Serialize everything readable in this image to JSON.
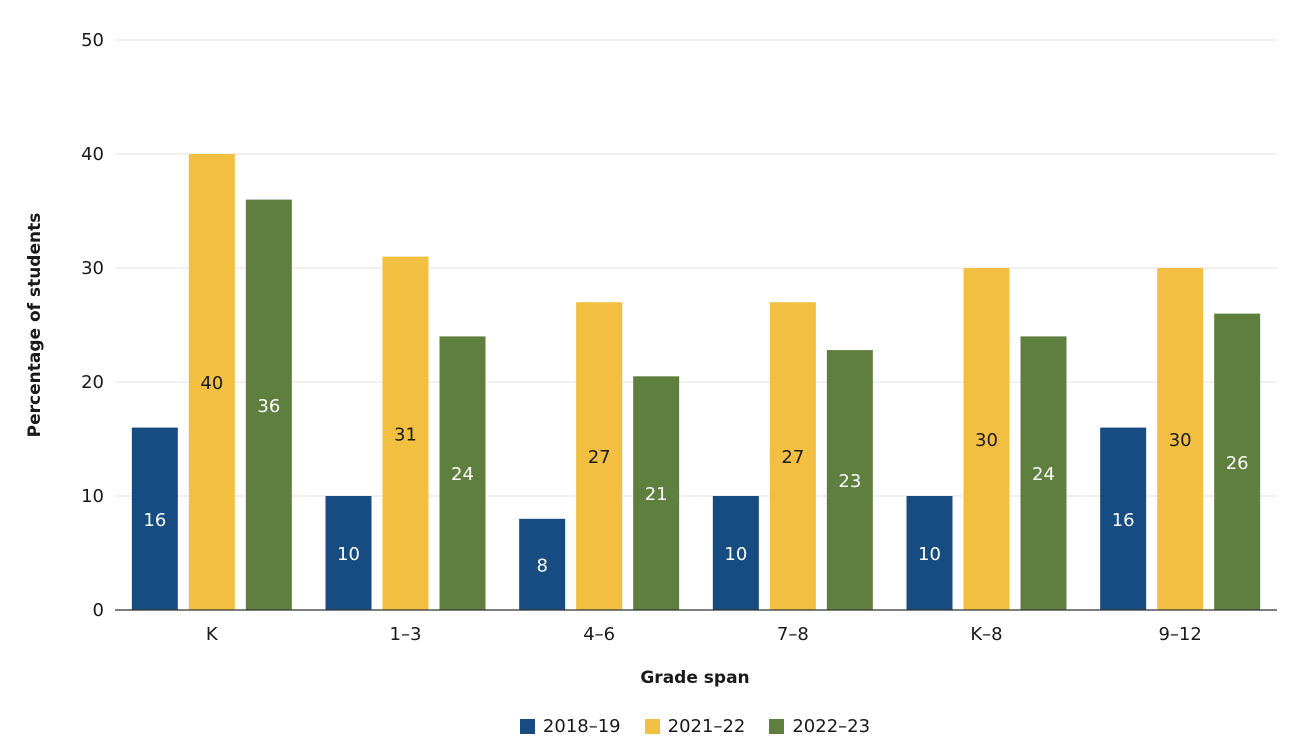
{
  "chart_data": {
    "type": "bar",
    "title": "",
    "xlabel": "Grade span",
    "ylabel": "Percentage of students",
    "ylim": [
      0,
      50
    ],
    "yticks": [
      0,
      10,
      20,
      30,
      40,
      50
    ],
    "grid": true,
    "legend_position": "bottom",
    "categories": [
      "K",
      "1–3",
      "4–6",
      "7–8",
      "K–8",
      "9–12"
    ],
    "series": [
      {
        "name": "2018–19",
        "color": "#164c82",
        "label_color": "#ffffff",
        "values": [
          16,
          10,
          8,
          10,
          10,
          16
        ],
        "labels": [
          "16",
          "10",
          "8",
          "10",
          "10",
          "16"
        ]
      },
      {
        "name": "2021–22",
        "color": "#f2bf40",
        "label_color": "#1a1a1a",
        "values": [
          40,
          31,
          27,
          27,
          30,
          30
        ],
        "labels": [
          "40",
          "31",
          "27",
          "27",
          "30",
          "30"
        ]
      },
      {
        "name": "2022–23",
        "color": "#5f7f3e",
        "label_color": "#ffffff",
        "values": [
          36,
          24,
          20.5,
          22.8,
          24,
          26
        ],
        "labels": [
          "36",
          "24",
          "21",
          "23",
          "24",
          "26"
        ]
      }
    ]
  }
}
